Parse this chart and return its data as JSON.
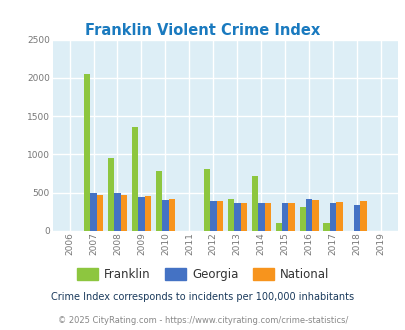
{
  "title": "Franklin Violent Crime Index",
  "years": [
    2006,
    2007,
    2008,
    2009,
    2010,
    2011,
    2012,
    2013,
    2014,
    2015,
    2016,
    2017,
    2018,
    2019
  ],
  "franklin": [
    0,
    2050,
    950,
    1360,
    780,
    0,
    810,
    420,
    720,
    110,
    310,
    110,
    0,
    0
  ],
  "georgia": [
    0,
    500,
    500,
    450,
    410,
    0,
    390,
    370,
    370,
    370,
    415,
    360,
    335,
    0
  ],
  "national": [
    0,
    475,
    465,
    455,
    415,
    0,
    395,
    365,
    360,
    365,
    400,
    385,
    390,
    0
  ],
  "color_franklin": "#8dc63f",
  "color_georgia": "#4472c4",
  "color_national": "#f7941d",
  "bg_color": "#ddeef6",
  "grid_color": "#ffffff",
  "ylim": [
    0,
    2500
  ],
  "yticks": [
    0,
    500,
    1000,
    1500,
    2000,
    2500
  ],
  "title_color": "#1a7abf",
  "subtitle": "Crime Index corresponds to incidents per 100,000 inhabitants",
  "subtitle_color": "#1a3a5c",
  "footer": "© 2025 CityRating.com - https://www.cityrating.com/crime-statistics/",
  "footer_color": "#888888",
  "bar_width": 0.27
}
